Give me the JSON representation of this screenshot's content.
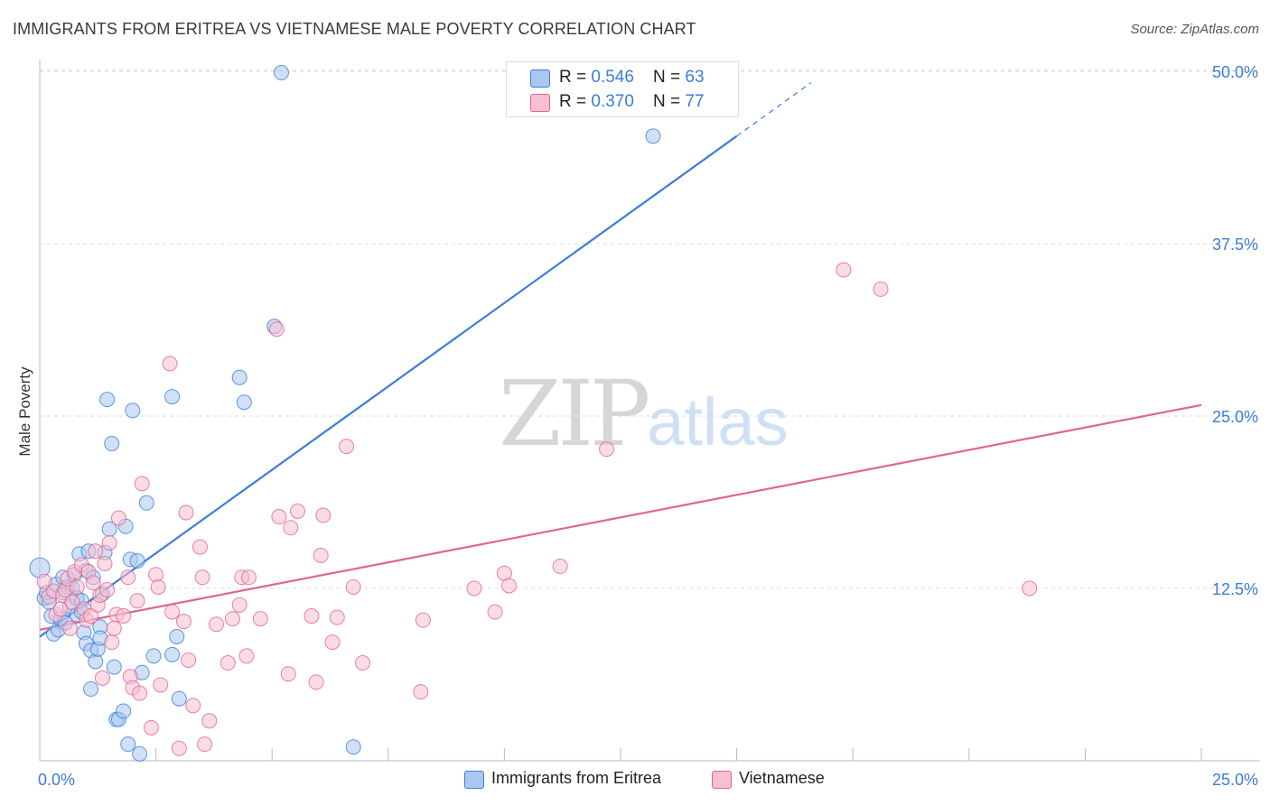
{
  "title": "IMMIGRANTS FROM ERITREA VS VIETNAMESE MALE POVERTY CORRELATION CHART",
  "source": "Source: ZipAtlas.com",
  "watermark": {
    "zip": "ZIP",
    "atlas": "atlas"
  },
  "colors": {
    "blue": "#3b7dd8",
    "blue_fill": "#a9c8f0",
    "pink": "#e0658f",
    "pink_fill": "#f6bfd2",
    "grid": "#dddddd",
    "axis": "#bbbbbb"
  },
  "legend_top": [
    {
      "r_label": "R = ",
      "r_value": "0.546",
      "n_label": "N = ",
      "n_value": "63"
    },
    {
      "r_label": "R = ",
      "r_value": "0.370",
      "n_label": "N = ",
      "n_value": "77"
    }
  ],
  "legend_bottom": [
    "Immigrants from Eritrea",
    "Vietnamese"
  ],
  "chart_data": {
    "type": "scatter",
    "title": "IMMIGRANTS FROM ERITREA VS VIETNAMESE MALE POVERTY CORRELATION CHART",
    "xlabel": "",
    "ylabel": "Male Poverty",
    "xlim": [
      0,
      25
    ],
    "ylim": [
      0,
      50
    ],
    "x_tick_labels": {
      "left": "0.0%",
      "right": "25.0%"
    },
    "y_ticks": [
      {
        "value": 12.5,
        "label": "12.5%"
      },
      {
        "value": 25.0,
        "label": "25.0%"
      },
      {
        "value": 37.5,
        "label": "37.5%"
      },
      {
        "value": 50.0,
        "label": "50.0%"
      }
    ],
    "series": [
      {
        "name": "Immigrants from Eritrea",
        "color": "#3b7dd8",
        "R": 0.546,
        "N": 63,
        "trend": {
          "x0": 0.0,
          "y0": 9.0,
          "x1": 15.0,
          "y1": 45.3,
          "dash_to_x": 16.6
        },
        "points": [
          [
            0.0,
            14.0
          ],
          [
            0.1,
            11.8
          ],
          [
            0.15,
            12.2
          ],
          [
            0.2,
            11.5
          ],
          [
            0.25,
            10.5
          ],
          [
            0.3,
            9.2
          ],
          [
            0.35,
            12.8
          ],
          [
            0.4,
            9.5
          ],
          [
            0.45,
            10.3
          ],
          [
            0.5,
            13.3
          ],
          [
            0.5,
            12.2
          ],
          [
            0.55,
            10.0
          ],
          [
            0.6,
            12.6
          ],
          [
            0.65,
            11.2
          ],
          [
            0.7,
            12.5
          ],
          [
            0.75,
            13.5
          ],
          [
            0.8,
            11.8
          ],
          [
            0.8,
            10.6
          ],
          [
            0.85,
            15.0
          ],
          [
            0.9,
            11.6
          ],
          [
            0.9,
            10.8
          ],
          [
            0.95,
            9.3
          ],
          [
            1.0,
            8.5
          ],
          [
            1.0,
            13.8
          ],
          [
            1.05,
            15.2
          ],
          [
            1.1,
            5.2
          ],
          [
            1.1,
            8.0
          ],
          [
            1.15,
            13.3
          ],
          [
            1.2,
            7.2
          ],
          [
            1.25,
            8.1
          ],
          [
            1.3,
            9.7
          ],
          [
            1.3,
            8.9
          ],
          [
            1.35,
            12.1
          ],
          [
            1.4,
            15.1
          ],
          [
            1.45,
            26.2
          ],
          [
            1.5,
            16.8
          ],
          [
            1.55,
            23.0
          ],
          [
            1.6,
            6.8
          ],
          [
            1.65,
            3.0
          ],
          [
            1.7,
            3.0
          ],
          [
            1.8,
            3.6
          ],
          [
            1.85,
            17.0
          ],
          [
            1.9,
            1.2
          ],
          [
            1.95,
            14.6
          ],
          [
            2.0,
            25.4
          ],
          [
            2.1,
            14.5
          ],
          [
            2.15,
            0.5
          ],
          [
            2.2,
            6.4
          ],
          [
            2.3,
            18.7
          ],
          [
            2.45,
            7.6
          ],
          [
            2.85,
            7.7
          ],
          [
            2.85,
            26.4
          ],
          [
            2.95,
            9.0
          ],
          [
            3.0,
            4.5
          ],
          [
            4.3,
            27.8
          ],
          [
            4.4,
            26.0
          ],
          [
            5.05,
            31.5
          ],
          [
            5.2,
            49.9
          ],
          [
            6.75,
            1.0
          ],
          [
            13.2,
            45.3
          ]
        ]
      },
      {
        "name": "Vietnamese",
        "color": "#e0658f",
        "R": 0.37,
        "N": 77,
        "trend": {
          "x0": 0.0,
          "y0": 9.5,
          "x1": 25.0,
          "y1": 25.8
        },
        "points": [
          [
            0.1,
            13.0
          ],
          [
            0.2,
            11.9
          ],
          [
            0.3,
            12.3
          ],
          [
            0.35,
            10.6
          ],
          [
            0.45,
            11.0
          ],
          [
            0.5,
            12.0
          ],
          [
            0.55,
            12.4
          ],
          [
            0.6,
            13.2
          ],
          [
            0.65,
            9.6
          ],
          [
            0.7,
            11.5
          ],
          [
            0.75,
            13.7
          ],
          [
            0.8,
            12.6
          ],
          [
            0.9,
            14.2
          ],
          [
            0.95,
            11.0
          ],
          [
            1.0,
            10.2
          ],
          [
            1.05,
            13.7
          ],
          [
            1.1,
            10.5
          ],
          [
            1.15,
            12.9
          ],
          [
            1.2,
            15.2
          ],
          [
            1.25,
            11.3
          ],
          [
            1.3,
            12.0
          ],
          [
            1.35,
            6.0
          ],
          [
            1.4,
            14.3
          ],
          [
            1.45,
            12.4
          ],
          [
            1.5,
            15.8
          ],
          [
            1.55,
            8.6
          ],
          [
            1.6,
            9.6
          ],
          [
            1.65,
            10.6
          ],
          [
            1.7,
            17.6
          ],
          [
            1.8,
            10.5
          ],
          [
            1.9,
            13.3
          ],
          [
            1.95,
            6.1
          ],
          [
            2.0,
            5.3
          ],
          [
            2.1,
            11.6
          ],
          [
            2.15,
            4.9
          ],
          [
            2.2,
            20.1
          ],
          [
            2.4,
            2.4
          ],
          [
            2.5,
            13.5
          ],
          [
            2.55,
            12.6
          ],
          [
            2.6,
            5.5
          ],
          [
            2.8,
            28.8
          ],
          [
            2.85,
            10.8
          ],
          [
            3.0,
            0.9
          ],
          [
            3.1,
            10.1
          ],
          [
            3.15,
            18.0
          ],
          [
            3.2,
            7.3
          ],
          [
            3.3,
            4.0
          ],
          [
            3.45,
            15.5
          ],
          [
            3.5,
            13.3
          ],
          [
            3.55,
            1.2
          ],
          [
            3.65,
            2.9
          ],
          [
            3.8,
            9.9
          ],
          [
            4.05,
            7.1
          ],
          [
            4.15,
            10.3
          ],
          [
            4.3,
            11.3
          ],
          [
            4.35,
            13.3
          ],
          [
            4.45,
            7.6
          ],
          [
            4.5,
            13.3
          ],
          [
            4.75,
            10.3
          ],
          [
            5.1,
            31.3
          ],
          [
            5.15,
            17.7
          ],
          [
            5.35,
            6.3
          ],
          [
            5.4,
            16.9
          ],
          [
            5.55,
            18.1
          ],
          [
            5.85,
            10.5
          ],
          [
            5.95,
            5.7
          ],
          [
            6.05,
            14.9
          ],
          [
            6.1,
            17.8
          ],
          [
            6.3,
            8.6
          ],
          [
            6.4,
            10.4
          ],
          [
            6.6,
            22.8
          ],
          [
            6.75,
            12.6
          ],
          [
            6.95,
            7.1
          ],
          [
            8.2,
            5.0
          ],
          [
            8.25,
            10.2
          ],
          [
            9.35,
            12.5
          ],
          [
            9.8,
            10.8
          ],
          [
            10.0,
            13.6
          ],
          [
            10.1,
            12.7
          ],
          [
            11.2,
            14.1
          ],
          [
            12.2,
            22.6
          ],
          [
            17.3,
            35.6
          ],
          [
            18.1,
            34.2
          ],
          [
            21.3,
            12.5
          ]
        ]
      }
    ]
  }
}
